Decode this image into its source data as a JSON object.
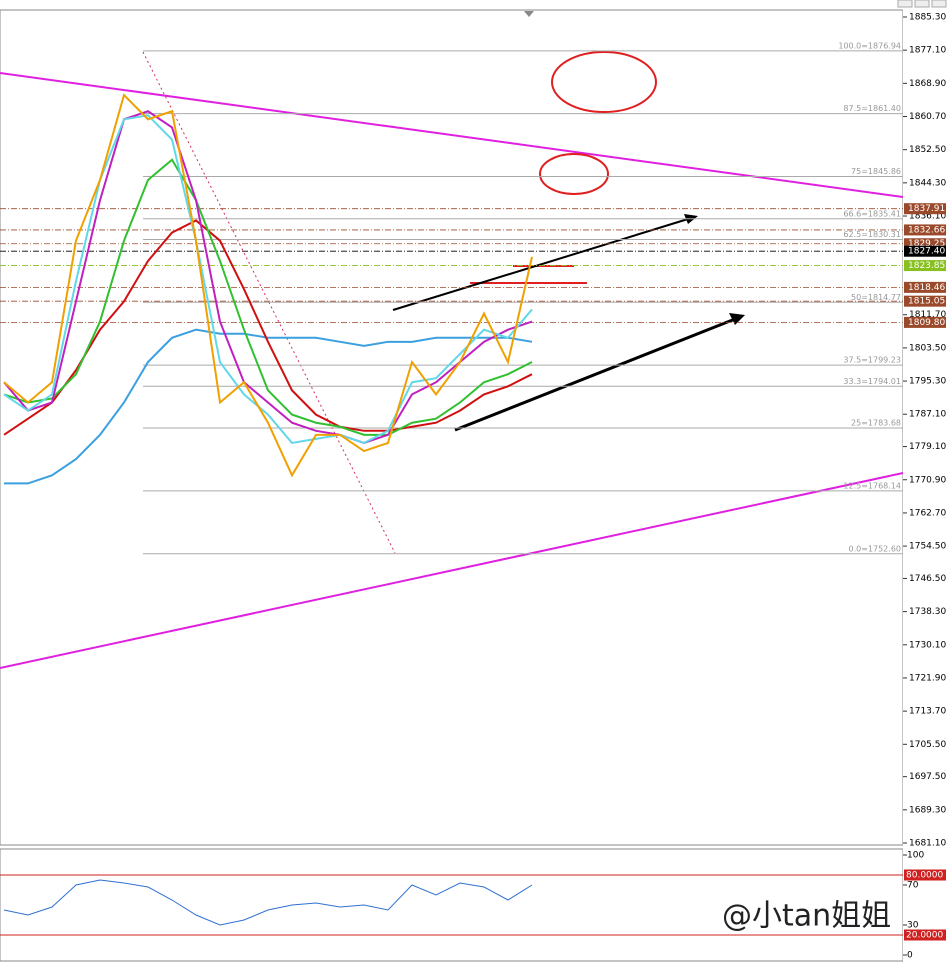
{
  "chart_data": {
    "type": "line",
    "categories": [
      null,
      null,
      null,
      null,
      null,
      null,
      null,
      null,
      null,
      null,
      null,
      null,
      null,
      null,
      null,
      null,
      null,
      null,
      null,
      null,
      null,
      null,
      null
    ],
    "series": [
      {
        "color": "#3ba0e0",
        "values": [
          1770,
          1770,
          1772,
          1776,
          1782,
          1790,
          1800,
          1806,
          1808,
          1807,
          1807,
          1806,
          1806,
          1806,
          1805,
          1804,
          1805,
          1805,
          1806,
          1806,
          1806,
          1806,
          1805
        ]
      },
      {
        "color": "#d01010",
        "values": [
          1782,
          1786,
          1790,
          1798,
          1808,
          1815,
          1825,
          1832,
          1835,
          1830,
          1818,
          1805,
          1793,
          1787,
          1784,
          1783,
          1783,
          1784,
          1785,
          1788,
          1792,
          1794,
          1797
        ]
      },
      {
        "color": "#30c030",
        "values": [
          1792,
          1790,
          1791,
          1797,
          1810,
          1830,
          1845,
          1850,
          1840,
          1825,
          1808,
          1793,
          1787,
          1785,
          1784,
          1782,
          1782,
          1785,
          1786,
          1790,
          1795,
          1797,
          1800
        ]
      },
      {
        "color": "#c020c0",
        "values": [
          1795,
          1788,
          1790,
          1815,
          1840,
          1860,
          1862,
          1858,
          1840,
          1810,
          1795,
          1790,
          1785,
          1783,
          1782,
          1780,
          1782,
          1792,
          1795,
          1800,
          1805,
          1808,
          1810
        ]
      },
      {
        "color": "#60d8e8",
        "values": [
          1792,
          1788,
          1792,
          1820,
          1845,
          1860,
          1861,
          1855,
          1830,
          1800,
          1792,
          1787,
          1780,
          1781,
          1782,
          1780,
          1783,
          1795,
          1796,
          1802,
          1808,
          1806,
          1813
        ]
      },
      {
        "color": "#f0a000",
        "values": [
          1795,
          1790,
          1795,
          1830,
          1845,
          1866,
          1860,
          1862,
          1830,
          1790,
          1795,
          1785,
          1772,
          1782,
          1782,
          1778,
          1780,
          1800,
          1792,
          1800,
          1812,
          1800,
          1826
        ]
      }
    ],
    "ylim": [
      1681.1,
      1885.3
    ],
    "yticks": [
      {
        "value": 1885.3,
        "label": "1885.30"
      },
      {
        "value": 1877.1,
        "label": "1877.10"
      },
      {
        "value": 1868.9,
        "label": "1868.90"
      },
      {
        "value": 1860.7,
        "label": "1860.70"
      },
      {
        "value": 1852.5,
        "label": "1852.50"
      },
      {
        "value": 1844.3,
        "label": "1844.30"
      },
      {
        "value": 1836.1,
        "label": "1836.10"
      },
      {
        "value": 1811.7,
        "label": "1811.70"
      },
      {
        "value": 1803.5,
        "label": "1803.50"
      },
      {
        "value": 1795.3,
        "label": "1795.30"
      },
      {
        "value": 1787.1,
        "label": "1787.10"
      },
      {
        "value": 1779.1,
        "label": "1779.10"
      },
      {
        "value": 1770.9,
        "label": "1770.90"
      },
      {
        "value": 1762.7,
        "label": "1762.70"
      },
      {
        "value": 1754.5,
        "label": "1754.50"
      },
      {
        "value": 1746.5,
        "label": "1746.50"
      },
      {
        "value": 1738.3,
        "label": "1738.30"
      },
      {
        "value": 1730.1,
        "label": "1730.10"
      },
      {
        "value": 1721.9,
        "label": "1721.90"
      },
      {
        "value": 1713.7,
        "label": "1713.70"
      },
      {
        "value": 1705.5,
        "label": "1705.50"
      },
      {
        "value": 1697.5,
        "label": "1697.50"
      },
      {
        "value": 1689.3,
        "label": "1689.30"
      },
      {
        "value": 1681.1,
        "label": "1681.10"
      }
    ],
    "fib_levels": [
      {
        "value": 1876.94,
        "label": "100.0=1876.94"
      },
      {
        "value": 1861.4,
        "label": "87.5=1861.40"
      },
      {
        "value": 1845.86,
        "label": "75=1845.86"
      },
      {
        "value": 1835.41,
        "label": "66.6=1835.41"
      },
      {
        "value": 1830.31,
        "label": "62.5=1830.31"
      },
      {
        "value": 1814.77,
        "label": "50=1814.77"
      },
      {
        "value": 1799.23,
        "label": "37.5=1799.23"
      },
      {
        "value": 1794.01,
        "label": "33.3=1794.01"
      },
      {
        "value": 1783.68,
        "label": "25=1783.68"
      },
      {
        "value": 1768.14,
        "label": "12.5=1768.14"
      },
      {
        "value": 1752.6,
        "label": "0.0=1752.60"
      }
    ],
    "price_tags": [
      {
        "value": 1837.91,
        "label": "1837.91",
        "color": "#9a4a2a"
      },
      {
        "value": 1832.66,
        "label": "1832.66",
        "color": "#9a4a2a"
      },
      {
        "value": 1829.25,
        "label": "1829.25",
        "color": "#9a4a2a"
      },
      {
        "value": 1827.4,
        "label": "1827.40",
        "color": "#000000"
      },
      {
        "value": 1823.85,
        "label": "1823.85",
        "color": "#88c020"
      },
      {
        "value": 1818.46,
        "label": "1818.46",
        "color": "#9a4a2a"
      },
      {
        "value": 1815.05,
        "label": "1815.05",
        "color": "#9a4a2a"
      },
      {
        "value": 1809.8,
        "label": "1809.80",
        "color": "#9a4a2a"
      }
    ],
    "indicator": {
      "values": [
        45,
        40,
        48,
        70,
        75,
        72,
        68,
        55,
        40,
        30,
        35,
        45,
        50,
        52,
        48,
        50,
        45,
        70,
        60,
        72,
        68,
        55,
        70
      ],
      "color": "#3070d0",
      "ylim": [
        0,
        100
      ],
      "yticks": [
        0,
        30,
        70,
        100
      ],
      "levels": [
        {
          "value": 80,
          "label": "80.0000"
        },
        {
          "value": 20,
          "label": "20.0000"
        }
      ]
    },
    "watermark": "@小tan姐姐"
  }
}
